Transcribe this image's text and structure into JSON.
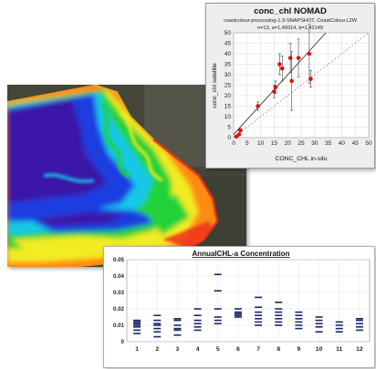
{
  "map": {
    "colors": {
      "deep": "#3a14a8",
      "blue": "#1a3ce0",
      "cyan": "#16c8e8",
      "green": "#22d23a",
      "yellow": "#f2ec24",
      "orange": "#ff8a14",
      "red": "#f0301a",
      "land": "#4b4a3c"
    }
  },
  "chart_data": [
    {
      "type": "scatter",
      "title": "conc_chl NOMAD",
      "subtitle": "coastcolour-processing-1.3-SNAPSHOT, CoastColour.L2W",
      "stats": "n=13, a=1,49314, b=1,42149",
      "xlabel": "CONC_CHL in-situ",
      "ylabel": "conc_chl satellite",
      "xlim": [
        0,
        50
      ],
      "ylim": [
        0,
        50
      ],
      "xticks": [
        "0",
        "5",
        "10",
        "15",
        "20",
        "25",
        "30",
        "35",
        "40",
        "45",
        "50"
      ],
      "yticks": [
        "0",
        "5",
        "10",
        "15",
        "20",
        "25",
        "30",
        "35",
        "40",
        "45",
        "50"
      ],
      "grid": true,
      "points": [
        {
          "x": 1,
          "y": 0.5,
          "err": 0
        },
        {
          "x": 2,
          "y": 1.5,
          "err": 0
        },
        {
          "x": 2.5,
          "y": 3.5,
          "err": 0
        },
        {
          "x": 9,
          "y": 15,
          "err": 2
        },
        {
          "x": 15,
          "y": 22,
          "err": 3
        },
        {
          "x": 15.5,
          "y": 24,
          "err": 3
        },
        {
          "x": 17,
          "y": 35,
          "err": 5
        },
        {
          "x": 18,
          "y": 33,
          "err": 6
        },
        {
          "x": 21,
          "y": 38,
          "err": 7
        },
        {
          "x": 21.5,
          "y": 27,
          "err": 14
        },
        {
          "x": 24,
          "y": 38,
          "err": 9
        },
        {
          "x": 28,
          "y": 40,
          "err": 14
        },
        {
          "x": 28.5,
          "y": 28,
          "err": 4
        }
      ],
      "regression": {
        "a": 1.49314,
        "b": 1.42149
      },
      "colors": {
        "point": "#e01010",
        "fit": "#222222",
        "identity": "#888888",
        "error": "#444444"
      }
    },
    {
      "type": "scatter",
      "title": "AnnualCHL-a Concentration",
      "xlim": [
        0.5,
        12.5
      ],
      "ylim": [
        0,
        0.05
      ],
      "xticks": [
        "1",
        "2",
        "3",
        "4",
        "5",
        "6",
        "7",
        "8",
        "9",
        "10",
        "11",
        "12"
      ],
      "yticks": [
        "0",
        "0.01",
        "0.02",
        "0.03",
        "0.04",
        "0.05"
      ],
      "grid": true,
      "series": [
        {
          "x": 1,
          "values": [
            0.005,
            0.007,
            0.009,
            0.01,
            0.011,
            0.012,
            0.013
          ]
        },
        {
          "x": 2,
          "values": [
            0.003,
            0.006,
            0.008,
            0.01,
            0.011,
            0.013,
            0.016
          ]
        },
        {
          "x": 3,
          "values": [
            0.004,
            0.007,
            0.008,
            0.01,
            0.013,
            0.014
          ]
        },
        {
          "x": 4,
          "values": [
            0.007,
            0.009,
            0.011,
            0.013,
            0.016,
            0.02
          ]
        },
        {
          "x": 5,
          "values": [
            0.011,
            0.013,
            0.015,
            0.02,
            0.031,
            0.041
          ]
        },
        {
          "x": 6,
          "values": [
            0.015,
            0.016,
            0.017,
            0.018,
            0.02
          ]
        },
        {
          "x": 7,
          "values": [
            0.01,
            0.012,
            0.014,
            0.016,
            0.018,
            0.021,
            0.027
          ]
        },
        {
          "x": 8,
          "values": [
            0.01,
            0.012,
            0.014,
            0.016,
            0.018,
            0.02,
            0.024
          ]
        },
        {
          "x": 9,
          "values": [
            0.008,
            0.01,
            0.012,
            0.014,
            0.016,
            0.018
          ]
        },
        {
          "x": 10,
          "values": [
            0.006,
            0.009,
            0.011,
            0.013,
            0.015
          ]
        },
        {
          "x": 11,
          "values": [
            0.006,
            0.008,
            0.01,
            0.012
          ]
        },
        {
          "x": 12,
          "values": [
            0.007,
            0.009,
            0.011,
            0.013,
            0.014
          ]
        }
      ],
      "colors": {
        "mark": "#1a2a6a",
        "grid": "#dde3ee",
        "plot_bg": "#ffffff"
      }
    }
  ]
}
